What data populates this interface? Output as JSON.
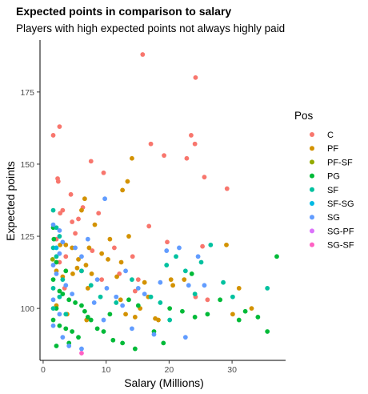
{
  "chart_data": {
    "type": "scatter",
    "title": "Expected points in comparison to salary",
    "subtitle": "Players with high expected points not always highly paid",
    "xlabel": "Salary (Millions)",
    "ylabel": "Expected points",
    "xlim": [
      -0.5,
      38.5
    ],
    "ylim": [
      82,
      193
    ],
    "x_ticks": [
      0,
      10,
      20,
      30
    ],
    "y_ticks": [
      100,
      125,
      150,
      175
    ],
    "grid": false,
    "legend": {
      "title": "Pos",
      "position": "right"
    },
    "series": [
      {
        "name": "C",
        "color": "#F8766D",
        "points": [
          [
            15.8,
            188
          ],
          [
            24.2,
            180
          ],
          [
            1.6,
            160
          ],
          [
            2.6,
            163
          ],
          [
            23.5,
            160
          ],
          [
            24.1,
            157
          ],
          [
            17.1,
            157
          ],
          [
            19.2,
            153
          ],
          [
            22.8,
            152
          ],
          [
            7.6,
            151
          ],
          [
            2.3,
            145
          ],
          [
            2.4,
            144
          ],
          [
            9.6,
            147
          ],
          [
            25.6,
            145.5
          ],
          [
            29.2,
            141.5
          ],
          [
            4.4,
            139.5
          ],
          [
            3.1,
            134
          ],
          [
            2.7,
            133
          ],
          [
            6.3,
            135
          ],
          [
            8.8,
            133
          ],
          [
            5.6,
            131
          ],
          [
            4.6,
            130
          ],
          [
            16.8,
            128.5
          ],
          [
            5.1,
            126
          ],
          [
            2.1,
            124
          ],
          [
            19.7,
            123
          ],
          [
            25.3,
            121.5
          ],
          [
            7.8,
            120
          ],
          [
            11.3,
            121
          ],
          [
            3.6,
            118
          ],
          [
            14.2,
            118
          ],
          [
            2.6,
            116
          ],
          [
            6.1,
            113
          ],
          [
            12.1,
            112
          ],
          [
            9.3,
            110
          ],
          [
            15.1,
            110
          ],
          [
            3.4,
            107
          ],
          [
            14.6,
            106
          ],
          [
            24.2,
            104
          ],
          [
            26.1,
            103
          ]
        ]
      },
      {
        "name": "PF",
        "color": "#D39200",
        "points": [
          [
            14.1,
            152
          ],
          [
            13.4,
            144
          ],
          [
            12.6,
            141
          ],
          [
            6.6,
            138
          ],
          [
            6.1,
            134
          ],
          [
            8.2,
            129
          ],
          [
            2.7,
            122
          ],
          [
            3.6,
            122
          ],
          [
            4.6,
            121
          ],
          [
            7.3,
            121
          ],
          [
            9.3,
            119
          ],
          [
            10.6,
            124
          ],
          [
            13.6,
            125
          ],
          [
            29.1,
            122
          ],
          [
            10.3,
            117
          ],
          [
            12.4,
            116
          ],
          [
            5.6,
            117
          ],
          [
            6.8,
            115
          ],
          [
            2.1,
            113
          ],
          [
            3.1,
            111
          ],
          [
            4.7,
            112
          ],
          [
            5.4,
            114
          ],
          [
            7.7,
            112
          ],
          [
            11.7,
            111
          ],
          [
            20.3,
            110
          ],
          [
            22.4,
            110
          ],
          [
            16.1,
            109
          ],
          [
            31.1,
            107
          ],
          [
            7.1,
            107
          ],
          [
            12.3,
            103
          ],
          [
            16.7,
            104
          ],
          [
            20.6,
            108
          ],
          [
            15.4,
            100
          ],
          [
            17.8,
            96.5
          ],
          [
            2.1,
            101
          ],
          [
            3.8,
            98
          ],
          [
            6.9,
            96
          ],
          [
            14.6,
            97
          ],
          [
            18.3,
            96
          ],
          [
            13.1,
            98
          ],
          [
            30.1,
            98
          ],
          [
            33.1,
            100
          ]
        ]
      },
      {
        "name": "PF-SF",
        "color": "#93AA00",
        "points": [
          [
            1.5,
            117
          ]
        ]
      },
      {
        "name": "PG",
        "color": "#00BA38",
        "points": [
          [
            1.6,
            128
          ],
          [
            1.7,
            124
          ],
          [
            2.1,
            116
          ],
          [
            3.6,
            113
          ],
          [
            1.6,
            110
          ],
          [
            2.6,
            106
          ],
          [
            3.1,
            105
          ],
          [
            4.1,
            103
          ],
          [
            5.1,
            102
          ],
          [
            2.1,
            100
          ],
          [
            6.6,
            99
          ],
          [
            7.1,
            97
          ],
          [
            1.6,
            96
          ],
          [
            2.6,
            94
          ],
          [
            3.6,
            93
          ],
          [
            4.6,
            92
          ],
          [
            5.6,
            90
          ],
          [
            2.1,
            87
          ],
          [
            4.1,
            88
          ],
          [
            7.6,
            96
          ],
          [
            8.6,
            93
          ],
          [
            9.6,
            92
          ],
          [
            11.1,
            89
          ],
          [
            12.6,
            88
          ],
          [
            14.6,
            86
          ],
          [
            17.6,
            92
          ],
          [
            19.1,
            88
          ],
          [
            13.6,
            103
          ],
          [
            15.1,
            101
          ],
          [
            20.1,
            100
          ],
          [
            22.1,
            99
          ],
          [
            24.1,
            97
          ],
          [
            26.1,
            98
          ],
          [
            31.1,
            96
          ],
          [
            34.1,
            97
          ],
          [
            35.6,
            92
          ],
          [
            37.1,
            118
          ],
          [
            23.6,
            112
          ],
          [
            28.1,
            103
          ],
          [
            32.1,
            99
          ],
          [
            10.6,
            98
          ],
          [
            6.1,
            101
          ]
        ]
      },
      {
        "name": "SF",
        "color": "#00C19F",
        "points": [
          [
            1.6,
            134
          ],
          [
            2.1,
            128
          ],
          [
            2.6,
            125
          ],
          [
            1.6,
            121
          ],
          [
            2.1,
            118
          ],
          [
            3.1,
            110
          ],
          [
            1.6,
            107
          ],
          [
            2.6,
            104
          ],
          [
            1.6,
            100
          ],
          [
            3.6,
            98
          ],
          [
            6.1,
            113
          ],
          [
            7.6,
            108
          ],
          [
            9.1,
            104
          ],
          [
            11.6,
            102
          ],
          [
            17.1,
            104
          ],
          [
            18.6,
            102
          ],
          [
            20.1,
            96
          ],
          [
            22.6,
            113
          ],
          [
            25.1,
            116
          ],
          [
            26.6,
            122
          ],
          [
            28.6,
            109
          ],
          [
            30.1,
            104
          ],
          [
            35.6,
            107
          ],
          [
            14.1,
            110
          ],
          [
            19.6,
            115
          ],
          [
            24.1,
            105
          ],
          [
            21.1,
            118
          ]
        ]
      },
      {
        "name": "SF-SG",
        "color": "#00B9E3",
        "points": [
          [
            2.1,
            121
          ]
        ]
      },
      {
        "name": "SG",
        "color": "#619CFF",
        "points": [
          [
            9.8,
            138
          ],
          [
            1.6,
            129
          ],
          [
            2.6,
            127
          ],
          [
            3.1,
            123
          ],
          [
            2.6,
            119
          ],
          [
            1.6,
            115
          ],
          [
            2.1,
            112
          ],
          [
            3.6,
            108
          ],
          [
            1.6,
            103
          ],
          [
            2.6,
            98
          ],
          [
            1.6,
            94
          ],
          [
            3.1,
            90
          ],
          [
            4.1,
            87
          ],
          [
            6.1,
            86
          ],
          [
            5.1,
            121
          ],
          [
            6.1,
            118
          ],
          [
            7.1,
            124
          ],
          [
            8.6,
            110
          ],
          [
            10.1,
            107
          ],
          [
            11.6,
            104
          ],
          [
            12.6,
            101
          ],
          [
            13.1,
            113
          ],
          [
            15.1,
            107
          ],
          [
            16.1,
            105
          ],
          [
            18.6,
            109
          ],
          [
            19.6,
            120
          ],
          [
            21.6,
            121
          ],
          [
            23.1,
            108
          ],
          [
            24.6,
            118
          ],
          [
            17.6,
            91
          ],
          [
            14.1,
            93
          ],
          [
            9.6,
            96
          ],
          [
            8.1,
            102
          ],
          [
            4.6,
            105
          ],
          [
            22.6,
            90
          ],
          [
            25.6,
            108
          ]
        ]
      },
      {
        "name": "SG-PF",
        "color": "#DB72FB",
        "points": []
      },
      {
        "name": "SG-SF",
        "color": "#FF61C3",
        "points": [
          [
            6.1,
            84.5
          ]
        ]
      }
    ]
  }
}
